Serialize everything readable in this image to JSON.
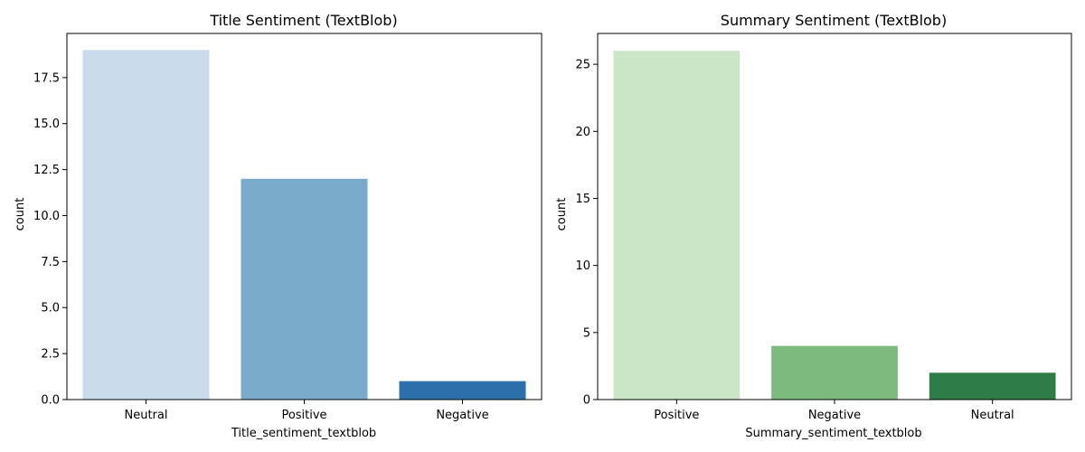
{
  "chart_data": [
    {
      "type": "bar",
      "title": "Title Sentiment (TextBlob)",
      "xlabel": "Title_sentiment_textblob",
      "ylabel": "count",
      "categories": [
        "Neutral",
        "Positive",
        "Negative"
      ],
      "values": [
        19,
        12,
        1
      ],
      "colors": [
        "#cadcec",
        "#79aaca",
        "#2d6fab"
      ],
      "ylim": [
        0,
        19.9
      ],
      "yticks": [
        0,
        2.5,
        5,
        7.5,
        10,
        12.5,
        15,
        17.5
      ],
      "ytick_labels": [
        "0.0",
        "2.5",
        "5.0",
        "7.5",
        "10.0",
        "12.5",
        "15.0",
        "17.5"
      ],
      "grid": false
    },
    {
      "type": "bar",
      "title": "Summary Sentiment (TextBlob)",
      "xlabel": "Summary_sentiment_textblob",
      "ylabel": "count",
      "categories": [
        "Positive",
        "Negative",
        "Neutral"
      ],
      "values": [
        26,
        4,
        2
      ],
      "colors": [
        "#cbe5c7",
        "#7dba7d",
        "#2e7d47"
      ],
      "ylim": [
        0,
        27.3
      ],
      "yticks": [
        0,
        5,
        10,
        15,
        20,
        25
      ],
      "ytick_labels": [
        "0",
        "5",
        "10",
        "15",
        "20",
        "25"
      ],
      "grid": false
    }
  ]
}
